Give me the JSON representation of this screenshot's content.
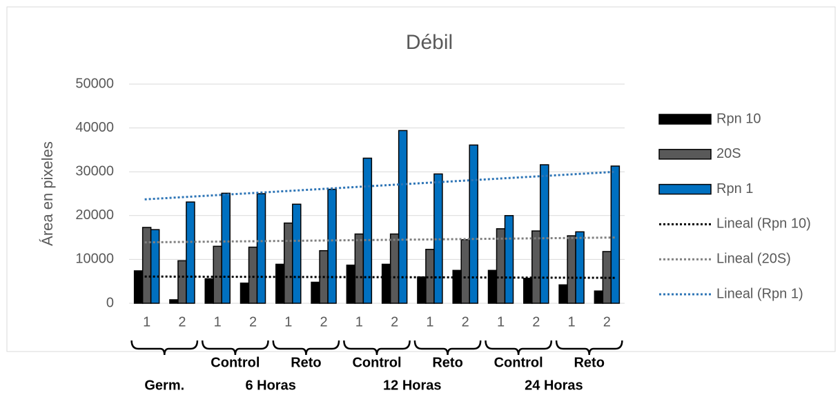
{
  "chart_data": {
    "type": "bar",
    "title": "Débil",
    "y_label": "Área en pixeles",
    "categories": [
      "1",
      "2",
      "1",
      "2",
      "1",
      "2",
      "1",
      "2",
      "1",
      "2",
      "1",
      "2",
      "1",
      "2"
    ],
    "series": [
      {
        "name": "Rpn 10",
        "color": "#000000",
        "values": [
          7400,
          800,
          5600,
          4600,
          8900,
          4800,
          8700,
          8900,
          6000,
          7500,
          7500,
          5700,
          4200,
          2800
        ]
      },
      {
        "name": "20S",
        "color": "#595959",
        "values": [
          17300,
          9700,
          13000,
          12800,
          18300,
          12000,
          15800,
          15800,
          12300,
          14500,
          17000,
          16500,
          15400,
          11800
        ]
      },
      {
        "name": "Rpn 1",
        "color": "#0070c0",
        "values": [
          16800,
          23100,
          25100,
          25000,
          22600,
          26000,
          33100,
          39400,
          29500,
          36100,
          20000,
          31600,
          16300,
          31300
        ]
      }
    ],
    "trendlines": [
      {
        "name": "Lineal (Rpn 10)",
        "color": "#000000",
        "values": [
          6100,
          5800
        ]
      },
      {
        "name": "Lineal (20S)",
        "color": "#808080",
        "values": [
          13900,
          15000
        ]
      },
      {
        "name": "Lineal (Rpn 1)",
        "color": "#2e75b6",
        "values": [
          23700,
          30000
        ]
      }
    ],
    "x_groups": [
      {
        "label": "Germ."
      },
      {
        "label": "6 Horas",
        "parts": [
          "Control",
          "Reto"
        ]
      },
      {
        "label": "12 Horas",
        "parts": [
          "Control",
          "Reto"
        ]
      },
      {
        "label": "24 Horas",
        "parts": [
          "Control",
          "Reto"
        ]
      }
    ],
    "ylim": [
      0,
      50000
    ],
    "yticks": [
      0,
      10000,
      20000,
      30000,
      40000,
      50000
    ],
    "grid": true,
    "legend": "right"
  }
}
